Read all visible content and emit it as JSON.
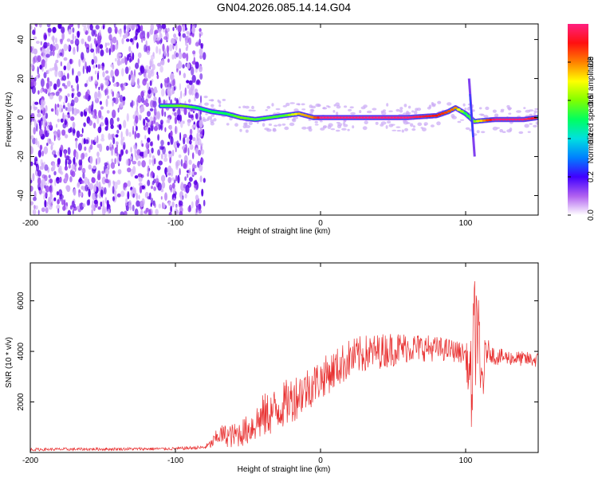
{
  "title": "GN04.2026.085.14.14.G04",
  "chart_data": [
    {
      "type": "heatmap",
      "name": "spectrogram",
      "xlabel": "Height of straight line (km)",
      "ylabel": "Frequency (Hz)",
      "xlim": [
        -200,
        150
      ],
      "ylim": [
        -50,
        48
      ],
      "xticks": [
        "-200",
        "-100",
        "0",
        "100"
      ],
      "yticks": [
        "-40",
        "-20",
        "0",
        "20",
        "40"
      ],
      "colorbar": {
        "label": "Normalized spectral amplitude",
        "range": [
          0,
          1
        ],
        "ticks": [
          "0.0",
          "0.2",
          "0.4",
          "0.6",
          "0.8"
        ]
      },
      "noise_region_x": [
        -200,
        -80
      ],
      "ridge": {
        "x": [
          -200,
          -110,
          -95,
          -85,
          -75,
          -65,
          -55,
          -45,
          -35,
          -25,
          -15,
          -5,
          0,
          20,
          40,
          60,
          80,
          88,
          93,
          100,
          106,
          120,
          140,
          150
        ],
        "freq": [
          5,
          6,
          6,
          5,
          3,
          2,
          0,
          -1,
          0,
          1,
          2,
          0,
          0,
          0,
          0,
          0,
          1,
          3,
          5,
          2,
          -2,
          -1,
          -1,
          0
        ],
        "amplitude": [
          0.2,
          0.5,
          0.6,
          0.5,
          0.5,
          0.5,
          0.6,
          0.55,
          0.55,
          0.55,
          0.75,
          0.8,
          1.0,
          1.0,
          1.0,
          1.0,
          0.9,
          0.85,
          0.8,
          0.5,
          0.6,
          1.0,
          1.0,
          0.9
        ]
      },
      "spike": {
        "x": 104,
        "freq_range": [
          -20,
          20
        ]
      }
    },
    {
      "type": "line",
      "name": "snr",
      "xlabel": "Height of straight line (km)",
      "ylabel": "SNR (10 * v/v)",
      "xlim": [
        -200,
        150
      ],
      "ylim": [
        0,
        7500
      ],
      "xticks": [
        "-200",
        "-100",
        "0",
        "100"
      ],
      "yticks": [
        "2000",
        "4000",
        "6000"
      ],
      "color": "#e83030",
      "envelope": {
        "x": [
          -200,
          -100,
          -80,
          -75,
          -70,
          -60,
          -50,
          -40,
          -30,
          -20,
          -10,
          0,
          10,
          20,
          30,
          40,
          50,
          60,
          70,
          80,
          90,
          100,
          104,
          106,
          108,
          110,
          115,
          120,
          130,
          140,
          150
        ],
        "mean": [
          120,
          150,
          200,
          350,
          700,
          650,
          900,
          1400,
          1700,
          2100,
          2500,
          2900,
          3300,
          3700,
          3900,
          4000,
          4100,
          4150,
          4150,
          4100,
          4050,
          3900,
          2500,
          4500,
          5500,
          2500,
          4100,
          3800,
          3750,
          3700,
          3650
        ],
        "amplitude": [
          60,
          60,
          80,
          200,
          400,
          500,
          600,
          900,
          900,
          950,
          900,
          800,
          800,
          800,
          750,
          700,
          700,
          600,
          550,
          500,
          450,
          400,
          2000,
          2500,
          2200,
          2000,
          400,
          350,
          300,
          300,
          300
        ]
      }
    }
  ]
}
